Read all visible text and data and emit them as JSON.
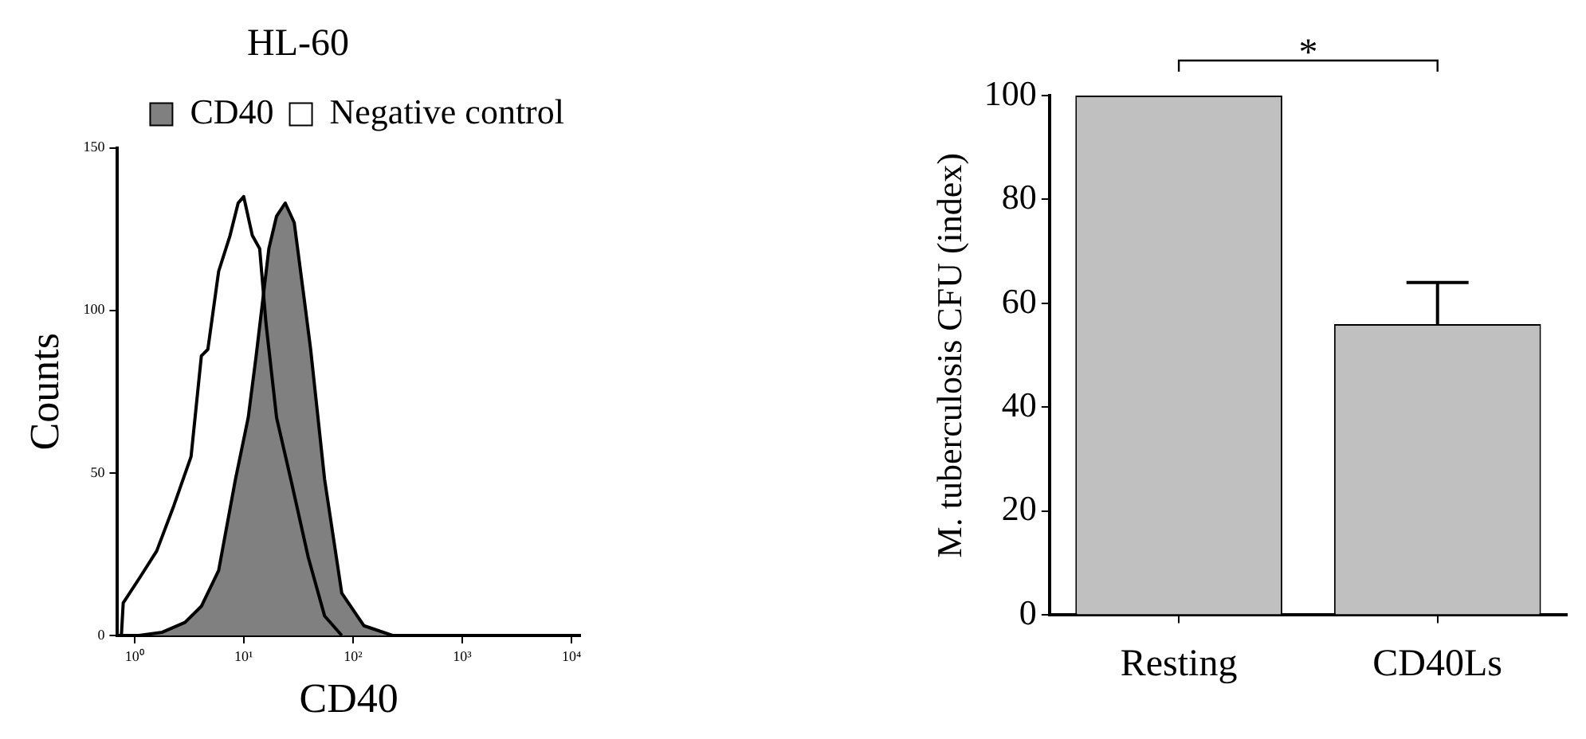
{
  "chart_data": [
    {
      "type": "area",
      "title": "HL-60",
      "xlabel": "CD40",
      "ylabel": "Counts",
      "log": "x",
      "grid": false,
      "legend": "top",
      "marker": "none",
      "xlim": [
        0.72,
        12000
      ],
      "xticks": [
        {
          "value": 1,
          "label": "10⁰"
        },
        {
          "value": 10,
          "label": "10¹"
        },
        {
          "value": 100,
          "label": "10²"
        },
        {
          "value": 1000,
          "label": "10³"
        },
        {
          "value": 10000,
          "label": "10⁴"
        }
      ],
      "ylim": [
        0,
        150
      ],
      "yticks": [
        0,
        50,
        100,
        150
      ],
      "series": [
        {
          "name": "CD40",
          "type": "area",
          "color": "#808080",
          "x": [
            1.1,
            1.8,
            2.9,
            4.1,
            5.9,
            8.4,
            11,
            13,
            17,
            20,
            24,
            29,
            35,
            41,
            55,
            79,
            126,
            230
          ],
          "values": [
            0,
            1,
            4,
            9,
            20,
            48,
            67,
            86,
            119,
            129,
            133,
            127,
            106,
            88,
            48,
            13,
            3,
            0
          ]
        },
        {
          "name": "Negative control",
          "type": "line",
          "color": "#000000",
          "x": [
            0.76,
            0.79,
            1.13,
            1.6,
            2.3,
            3.3,
            4.1,
            4.7,
            5.9,
            7.5,
            8.9,
            10,
            12,
            14,
            16,
            20,
            27,
            39,
            55,
            79
          ],
          "values": [
            0,
            10,
            18,
            26,
            40,
            55,
            86,
            88,
            112,
            123,
            133,
            135,
            123,
            119,
            96,
            67,
            48,
            24,
            6,
            0
          ]
        }
      ]
    },
    {
      "type": "bar",
      "ylabel": "M. tuberculosis CFU (index)",
      "grid": false,
      "legend": false,
      "categories": [
        "Resting",
        "CD40Ls"
      ],
      "values": [
        100,
        56
      ],
      "errors": [
        null,
        8
      ],
      "color": "#c0c0c0",
      "ylim": [
        0,
        100
      ],
      "yticks": [
        0,
        20,
        40,
        60,
        80,
        100
      ],
      "annotations": [
        "*"
      ]
    }
  ]
}
